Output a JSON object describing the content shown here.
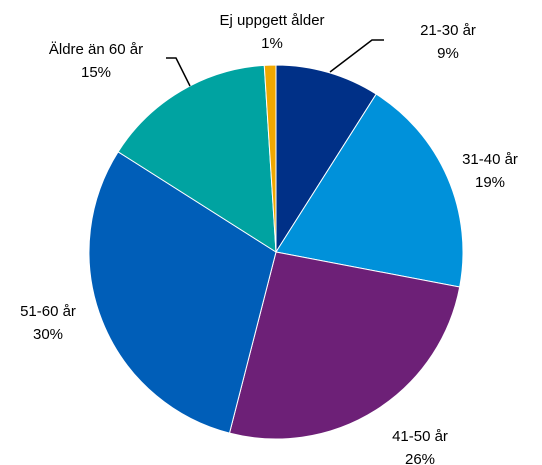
{
  "chart_data": {
    "type": "pie",
    "categories": [
      "21-30 år",
      "31-40 år",
      "41-50 år",
      "51-60 år",
      "Äldre än 60 år",
      "Ej uppgett ålder"
    ],
    "values": [
      9,
      19,
      26,
      30,
      15,
      1
    ],
    "value_labels": [
      "9%",
      "19%",
      "26%",
      "30%",
      "15%",
      "1%"
    ],
    "colors": [
      "#003087",
      "#0091da",
      "#6d2077",
      "#005eb8",
      "#00a3a1",
      "#f0a800"
    ]
  }
}
